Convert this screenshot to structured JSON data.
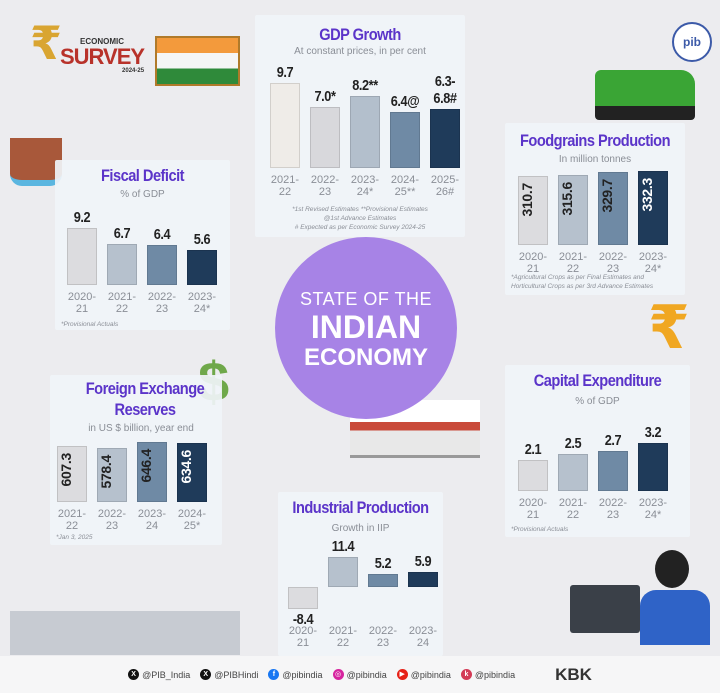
{
  "logo": {
    "line1": "ECONOMIC",
    "line2": "SURVEY",
    "line3": "2024-25",
    "pib": "pib"
  },
  "center": {
    "line1": "STATE OF THE",
    "line2": "INDIAN",
    "line3": "ECONOMY",
    "color": "#a783e6"
  },
  "chart_data": [
    {
      "type": "bar",
      "title": "GDP Growth",
      "subtitle": "At constant prices, in per cent",
      "categories": [
        "2021-22",
        "2022-23",
        "2023-24*",
        "2024-25**",
        "2025-26#"
      ],
      "values": [
        9.7,
        7.0,
        8.2,
        6.4,
        [
          6.3,
          6.8
        ]
      ],
      "value_labels": [
        "9.7",
        "7.0*",
        "8.2**",
        "6.4@",
        "6.3-6.8#"
      ],
      "notes": [
        "*1st Revised Estimates **Provisional Estimates",
        "@1st Advance Estimates",
        "# Expected as per Economic Survey 2024-25"
      ],
      "ylim": [
        0,
        12
      ],
      "colors": [
        "#efece8",
        "#d8d8dc",
        "#b3bfcc",
        "#6f8aa5",
        "#1f3b5a"
      ]
    },
    {
      "type": "bar",
      "title": "Fiscal Deficit",
      "subtitle": "% of GDP",
      "categories": [
        "2020-21",
        "2021-22",
        "2022-23",
        "2023-24*"
      ],
      "values": [
        9.2,
        6.7,
        6.4,
        5.6
      ],
      "value_labels": [
        "9.2",
        "6.7",
        "6.4",
        "5.6"
      ],
      "notes": [
        "*Provisional Actuals"
      ],
      "ylim": [
        0,
        11
      ],
      "colors": [
        "#dcdcdf",
        "#b6c1cd",
        "#6f8aa5",
        "#1f3b5a"
      ]
    },
    {
      "type": "bar",
      "title": "Foodgrains Production",
      "subtitle": "In million tonnes",
      "categories": [
        "2020-21",
        "2021-22",
        "2022-23",
        "2023-24*"
      ],
      "values": [
        310.7,
        315.6,
        329.7,
        332.3
      ],
      "value_labels": [
        "310.7",
        "315.6",
        "329.7",
        "332.3"
      ],
      "notes": [
        "*Agricultural Crops as per Final Estimates and",
        "Horticultural Crops as per 3rd Advance Estimates"
      ],
      "ylim": [
        0,
        350
      ],
      "colors": [
        "#dcdcdf",
        "#b6c1cd",
        "#6f8aa5",
        "#1f3b5a"
      ]
    },
    {
      "type": "bar",
      "title": "Foreign Exchange Reserves",
      "subtitle": "in US $ billion, year end",
      "categories": [
        "2021-22",
        "2022-23",
        "2023-24",
        "2024-25*"
      ],
      "values": [
        607.3,
        578.4,
        646.4,
        634.6
      ],
      "value_labels": [
        "607.3",
        "578.4",
        "646.4",
        "634.6"
      ],
      "notes": [
        "*Jan 3, 2025"
      ],
      "ylim": [
        0,
        700
      ],
      "colors": [
        "#dcdcdf",
        "#b6c1cd",
        "#6f8aa5",
        "#1f3b5a"
      ]
    },
    {
      "type": "bar",
      "title": "Capital Expenditure",
      "subtitle": "% of GDP",
      "categories": [
        "2020-21",
        "2021-22",
        "2022-23",
        "2023-24*"
      ],
      "values": [
        2.1,
        2.5,
        2.7,
        3.2
      ],
      "value_labels": [
        "2.1",
        "2.5",
        "2.7",
        "3.2"
      ],
      "notes": [
        "*Provisional Actuals"
      ],
      "ylim": [
        0,
        4
      ],
      "colors": [
        "#dcdcdf",
        "#b6c1cd",
        "#6f8aa5",
        "#1f3b5a"
      ]
    },
    {
      "type": "bar",
      "title": "Industrial Production",
      "subtitle": "Growth in IIP",
      "categories": [
        "2020-21",
        "2021-22",
        "2022-23",
        "2023-24"
      ],
      "values": [
        -8.4,
        11.4,
        5.2,
        5.9
      ],
      "value_labels": [
        "-8.4",
        "11.4",
        "5.2",
        "5.9"
      ],
      "notes": [],
      "ylim": [
        -12,
        16
      ],
      "colors": [
        "#dcdcdf",
        "#b6c1cd",
        "#6f8aa5",
        "#1f3b5a"
      ]
    }
  ],
  "footer": {
    "handles": [
      {
        "icon": "x-icon",
        "text": "@PIB_India",
        "color": "#111111"
      },
      {
        "icon": "x-icon",
        "text": "@PIBHindi",
        "color": "#111111"
      },
      {
        "icon": "facebook-icon",
        "text": "@pibindia",
        "color": "#1877f2"
      },
      {
        "icon": "instagram-icon",
        "text": "@pibindia",
        "color": "#d6249f"
      },
      {
        "icon": "youtube-icon",
        "text": "@pibindia",
        "color": "#e62117"
      },
      {
        "icon": "kooapp-icon",
        "text": "@pibindia",
        "color": "#d33a55"
      }
    ],
    "credit": "KBK"
  }
}
